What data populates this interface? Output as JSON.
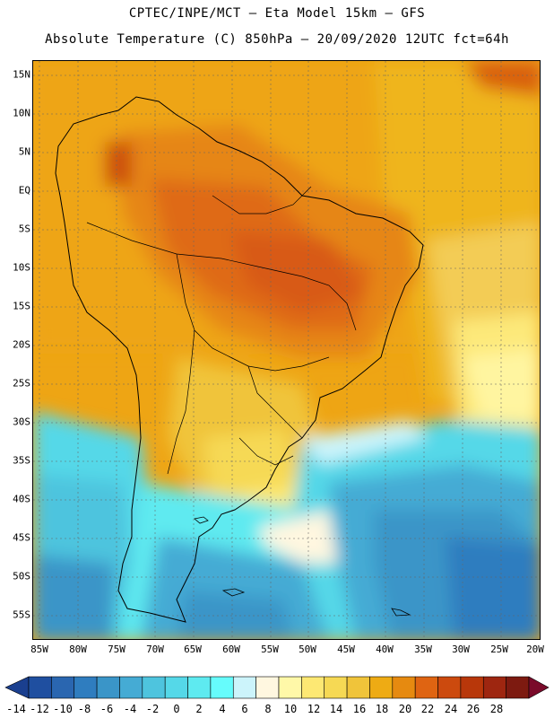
{
  "title_line1": "CPTEC/INPE/MCT –  Eta Model 15km – GFS",
  "title_line2": "Absolute Temperature (C) 850hPa – 20/09/2020 12UTC fct=64h",
  "lat_labels": [
    "15N",
    "10N",
    "5N",
    "EQ",
    "5S",
    "10S",
    "15S",
    "20S",
    "25S",
    "30S",
    "35S",
    "40S",
    "45S",
    "50S",
    "55S"
  ],
  "lon_labels": [
    "85W",
    "80W",
    "75W",
    "70W",
    "65W",
    "60W",
    "55W",
    "50W",
    "45W",
    "40W",
    "35W",
    "30W",
    "25W",
    "20W"
  ],
  "colorbar": {
    "labels": [
      "-14",
      "-12",
      "-10",
      "-8",
      "-6",
      "-4",
      "-2",
      "0",
      "2",
      "4",
      "6",
      "8",
      "10",
      "12",
      "14",
      "16",
      "18",
      "20",
      "22",
      "24",
      "26",
      "28"
    ],
    "colors": [
      "#1a3f8f",
      "#1f4fa0",
      "#2a66b0",
      "#2f7dbf",
      "#3a95c8",
      "#45abd4",
      "#4ec4de",
      "#55d8e8",
      "#5eeaf0",
      "#66fcfc",
      "#ccf4fb",
      "#fff7e0",
      "#fff8a8",
      "#fde873",
      "#f6d954",
      "#f0c43a",
      "#eeab14",
      "#e68a10",
      "#df6412",
      "#cc4a0e",
      "#b8370a",
      "#9e2610",
      "#7d1a10",
      "#7a0a2a"
    ]
  }
}
